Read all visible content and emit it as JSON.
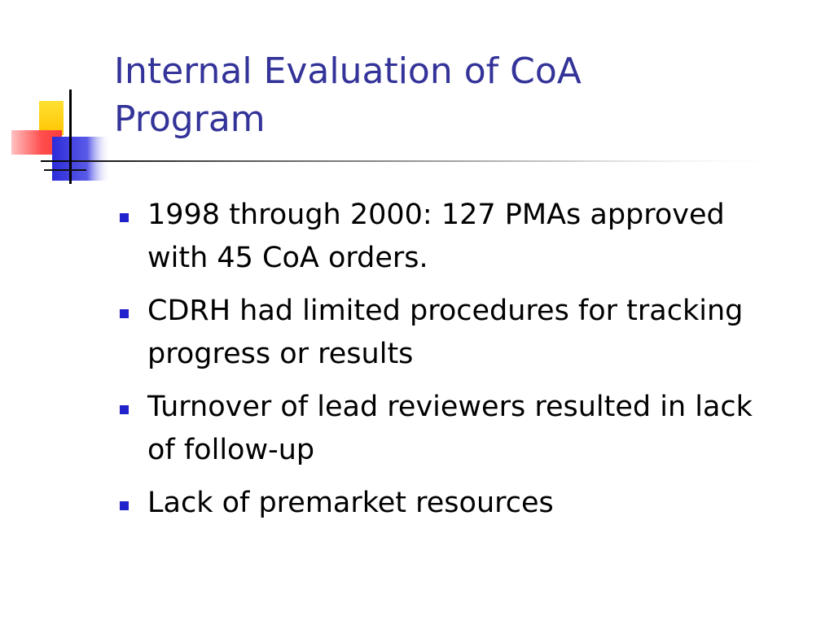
{
  "slide": {
    "title": "Internal Evaluation of CoA\nProgram",
    "bullets": [
      {
        "text": "1998 through 2000: 127 PMAs approved with 45 CoA orders."
      },
      {
        "text": "CDRH had limited procedures for tracking progress or results"
      },
      {
        "text": "Turnover of lead reviewers resulted in lack of follow-up"
      },
      {
        "text": "Lack of premarket resources"
      }
    ]
  },
  "theme": {
    "title_color": "#333399",
    "bullet_color": "#2222cc",
    "accent_yellow": "#ffd700",
    "accent_red": "#ff4d4d",
    "accent_blue": "#2b2bd9"
  }
}
